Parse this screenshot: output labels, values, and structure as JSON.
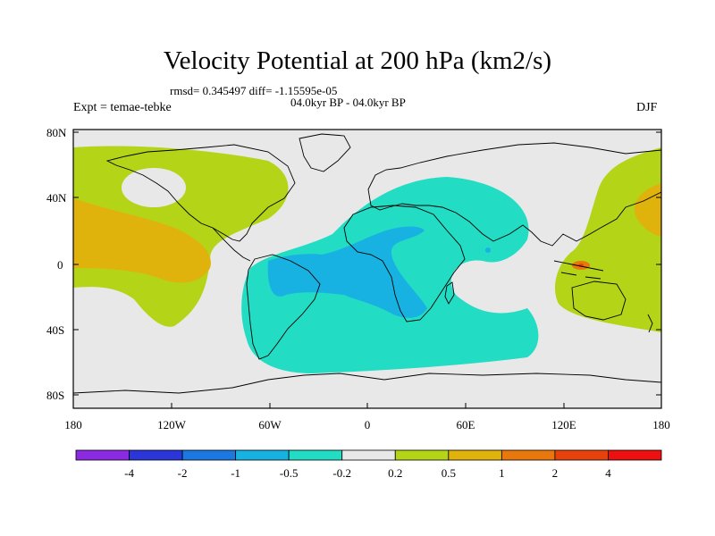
{
  "title": "Velocity Potential at 200 hPa (km2/s)",
  "stats": "rmsd= 0.345497 diff= -1.15595e-05",
  "period": "04.0kyr BP - 04.0kyr BP",
  "expt": "Expt = temae-tebke",
  "season": "DJF",
  "lat_labels": [
    "80N",
    "40N",
    "0",
    "40S",
    "80S"
  ],
  "lon_labels": [
    "180",
    "120W",
    "60W",
    "0",
    "60E",
    "120E",
    "180"
  ],
  "colorbar": {
    "labels": [
      "-4",
      "-2",
      "-1",
      "-0.5",
      "-0.2",
      "0.2",
      "0.5",
      "1",
      "2",
      "4"
    ],
    "colors": [
      "#8a2be2",
      "#2a36d8",
      "#1a78e0",
      "#18b2e2",
      "#22dcc4",
      "#e8e8e8",
      "#b4d418",
      "#e0b20c",
      "#e8780c",
      "#e8420c",
      "#ec1010"
    ]
  },
  "colors": {
    "ocean_bg": "#e8e8e8",
    "neg_02": "#22dcc4",
    "neg_05": "#18b2e2",
    "neg_1": "#1a78e0",
    "pos_02": "#b4d418",
    "pos_05": "#e0b20c",
    "pos_1": "#e8780c",
    "pos_2": "#e8420c"
  }
}
